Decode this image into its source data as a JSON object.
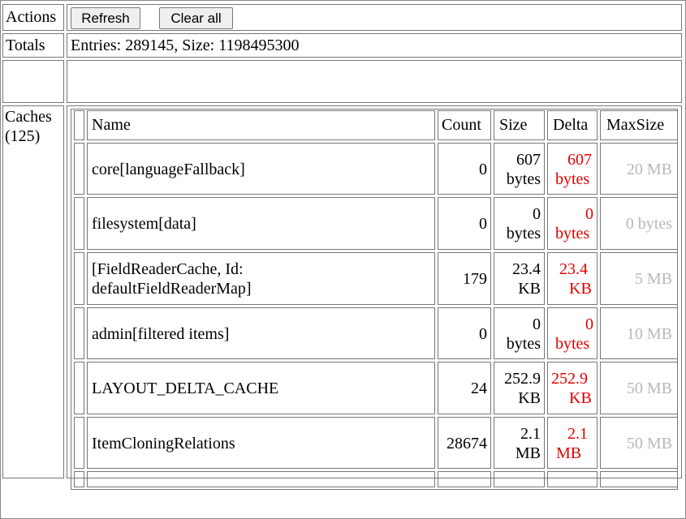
{
  "actions": {
    "label": "Actions",
    "refresh_label": "Refresh",
    "clear_label": "Clear all"
  },
  "totals": {
    "label": "Totals",
    "text": "Entries: 289145, Size: 1198495300"
  },
  "caches": {
    "label": "Caches",
    "count": "(125)",
    "headers": {
      "name": "Name",
      "count": "Count",
      "size": "Size",
      "delta": "Delta",
      "maxsize": "MaxSize"
    },
    "rows": [
      {
        "name1": "core[languageFallback]",
        "name2": "",
        "count": "0",
        "size1": "607",
        "size2": "bytes",
        "delta1": "607",
        "delta2": "bytes",
        "max": "20 MB"
      },
      {
        "name1": "filesystem[data]",
        "name2": "",
        "count": "0",
        "size1": "0",
        "size2": "bytes",
        "delta1": "0",
        "delta2": "bytes",
        "max": "0 bytes"
      },
      {
        "name1": "[FieldReaderCache, Id:",
        "name2": "defaultFieldReaderMap]",
        "count": "179",
        "size1": "23.4",
        "size2": "KB",
        "delta1": "23.4",
        "delta2": "KB",
        "max": "5 MB"
      },
      {
        "name1": "admin[filtered items]",
        "name2": "",
        "count": "0",
        "size1": "0",
        "size2": "bytes",
        "delta1": "0",
        "delta2": "bytes",
        "max": "10 MB"
      },
      {
        "name1": "LAYOUT_DELTA_CACHE",
        "name2": "",
        "count": "24",
        "size1": "252.9",
        "size2": "KB",
        "delta1": "252.9",
        "delta2": "KB",
        "max": "50 MB"
      },
      {
        "name1": "ItemCloningRelations",
        "name2": "",
        "count": "28674",
        "size1": "2.1",
        "size2": "MB",
        "delta1": "2.1",
        "delta2": "MB",
        "max": "50 MB"
      }
    ]
  },
  "colors": {
    "delta": "#e00000",
    "maxsize": "#b8b8b8",
    "border": "#777777"
  }
}
